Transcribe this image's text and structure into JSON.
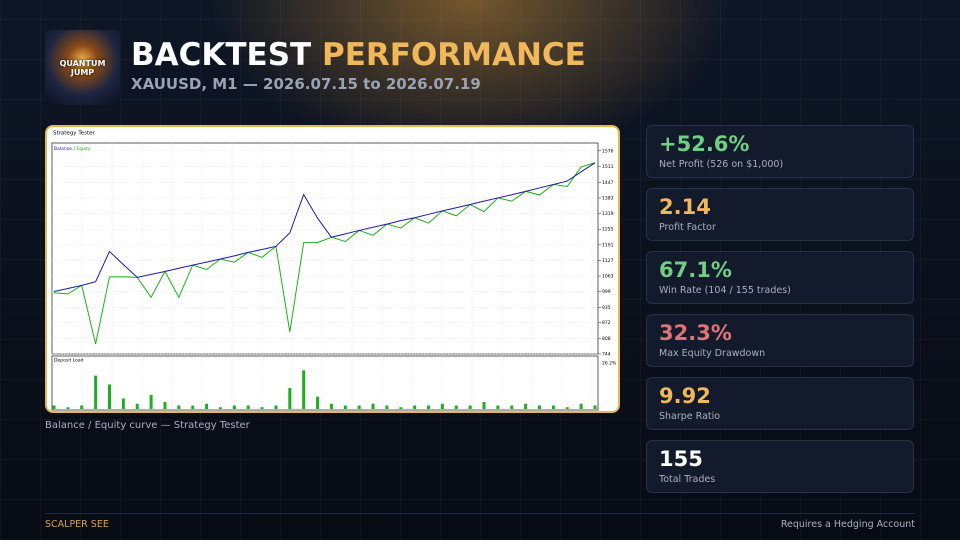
{
  "header": {
    "logo_text": "QUANTUM JUMP",
    "title_part1": "BACKTEST",
    "title_part2": "PERFORMANCE",
    "subtitle": "XAUUSD, M1 — 2026.07.15 to 2026.07.19"
  },
  "chart_data": {
    "type": "line",
    "title": "Strategy Tester",
    "legend_separator": " / ",
    "grid": true,
    "series": [
      {
        "name": "Balance",
        "color": "#1c1c9c",
        "values": [
          1000,
          1012,
          1025,
          1040,
          1164,
          1110,
          1058,
          1070,
          1082,
          1095,
          1108,
          1120,
          1133,
          1146,
          1160,
          1172,
          1185,
          1240,
          1397,
          1300,
          1222,
          1236,
          1250,
          1263,
          1276,
          1290,
          1302,
          1316,
          1330,
          1343,
          1356,
          1370,
          1383,
          1396,
          1410,
          1424,
          1438,
          1452,
          1490,
          1527
        ]
      },
      {
        "name": "Equity",
        "color": "#1fae1f",
        "values": [
          995,
          990,
          1025,
          785,
          1060,
          1060,
          1058,
          976,
          1082,
          976,
          1108,
          1090,
          1133,
          1120,
          1160,
          1140,
          1185,
          834,
          1200,
          1200,
          1222,
          1205,
          1250,
          1230,
          1276,
          1260,
          1302,
          1280,
          1330,
          1310,
          1356,
          1327,
          1383,
          1370,
          1410,
          1395,
          1438,
          1430,
          1510,
          1527
        ]
      }
    ],
    "ylim": [
      744,
      1608
    ],
    "yticks": [
      1576,
      1511,
      1447,
      1383,
      1319,
      1255,
      1191,
      1127,
      1063,
      999,
      935,
      872,
      808,
      744
    ],
    "deposit_load": {
      "type": "bar",
      "title": "Deposit Load",
      "color": "#1fae1f",
      "values": [
        2,
        1,
        2,
        19,
        14,
        6,
        3,
        8,
        4,
        2,
        2,
        3,
        1,
        2,
        2,
        1,
        2,
        12,
        22,
        7,
        3,
        2,
        2,
        3,
        2,
        1,
        2,
        2,
        3,
        2,
        2,
        4,
        2,
        2,
        3,
        2,
        2,
        1,
        3,
        2
      ],
      "ylim": [
        0,
        26.2
      ],
      "yticks": [
        {
          "value": 26.2,
          "label": "26.2%"
        }
      ]
    }
  },
  "caption": "Balance / Equity curve — Strategy Tester",
  "stats": [
    {
      "value": "+52.6%",
      "label": "Net Profit (526 on $1,000)",
      "color": "#6fcf83"
    },
    {
      "value": "2.14",
      "label": "Profit Factor",
      "color": "#f0b85a"
    },
    {
      "value": "67.1%",
      "label": "Win Rate (104 / 155 trades)",
      "color": "#6fcf83"
    },
    {
      "value": "32.3%",
      "label": "Max Equity Drawdown",
      "color": "#e07474"
    },
    {
      "value": "9.92",
      "label": "Sharpe Ratio",
      "color": "#f0b85a"
    },
    {
      "value": "155",
      "label": "Total Trades",
      "color": "#ffffff"
    }
  ],
  "footer": {
    "left": "SCALPER SEE",
    "right": "Requires a Hedging Account"
  }
}
